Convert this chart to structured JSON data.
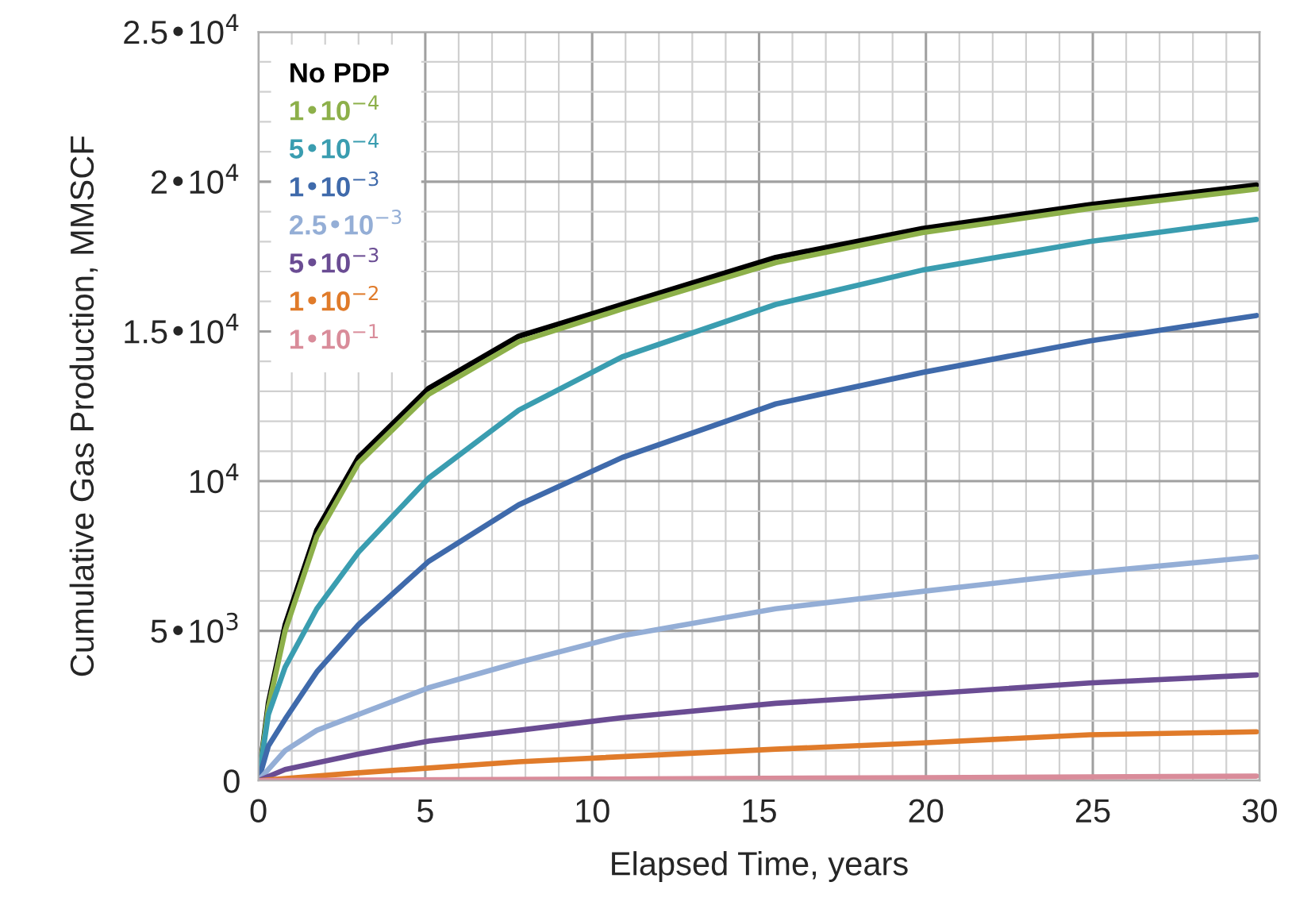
{
  "chart_data": {
    "type": "line",
    "xlabel": "Elapsed Time, years",
    "ylabel": "Cumulative Gas Production, MMSCF",
    "xlim": [
      0,
      30
    ],
    "xticks": [
      0,
      5,
      10,
      15,
      20,
      25,
      30
    ],
    "ylim": [
      0,
      25000
    ],
    "yticks": [
      0,
      {
        "value": 5000,
        "label": "5•10$^{3}$"
      },
      {
        "value": 10000,
        "label": "10$^{4}$"
      },
      {
        "value": 15000,
        "label": "1.5•10$^{4}$"
      },
      {
        "value": 20000,
        "label": "2•10$^{4}$"
      },
      {
        "value": 25000,
        "label": "2.5•10$^{4}$"
      }
    ],
    "grid": true,
    "legend": "top left",
    "marker": "none",
    "line_style": "solid",
    "series": [
      {
        "name": "No PDP",
        "color": "#000000",
        "x": [
          0,
          0.3,
          0.8,
          1.75,
          3,
          5.1,
          7.8,
          10.9,
          15.5,
          19.9,
          24.9,
          29.9
        ],
        "values": [
          0,
          2600,
          5200,
          8370,
          10800,
          13100,
          14840,
          15900,
          17470,
          18440,
          19230,
          19890
        ]
      },
      {
        "name": "1•10$^{−4}$",
        "color": "#8db04a",
        "x": [
          0,
          0.3,
          0.8,
          1.75,
          3,
          5.1,
          7.8,
          10.9,
          15.5,
          19.9,
          24.9,
          29.9
        ],
        "values": [
          0,
          2450,
          5000,
          8150,
          10600,
          12900,
          14650,
          15750,
          17300,
          18300,
          19100,
          19750
        ]
      },
      {
        "name": "5•10$^{−4}$",
        "color": "#3a9db0",
        "x": [
          0,
          0.3,
          0.8,
          1.75,
          3,
          5.1,
          7.8,
          10.9,
          15.5,
          19.9,
          24.9,
          29.9
        ],
        "values": [
          0,
          2210,
          3790,
          5740,
          7630,
          10100,
          12370,
          14150,
          15900,
          17050,
          18000,
          18740
        ]
      },
      {
        "name": "1•10$^{−3}$",
        "color": "#3f6aab",
        "x": [
          0,
          0.3,
          0.8,
          1.75,
          3,
          5.1,
          7.8,
          10.9,
          15.5,
          19.9,
          24.9,
          29.9
        ],
        "values": [
          0,
          1160,
          2050,
          3630,
          5210,
          7320,
          9210,
          10790,
          12580,
          13630,
          14680,
          15530
        ]
      },
      {
        "name": "2.5•10$^{−3}$",
        "color": "#94aed6",
        "x": [
          0,
          0.8,
          1.75,
          3,
          5.1,
          7.8,
          10.9,
          15.5,
          19.9,
          24.9,
          29.9
        ],
        "values": [
          0,
          1000,
          1680,
          2210,
          3100,
          3950,
          4840,
          5740,
          6320,
          6950,
          7470
        ]
      },
      {
        "name": "5•10$^{−3}$",
        "color": "#6a4c93",
        "x": [
          0,
          0.8,
          3,
          5.1,
          7.8,
          10.9,
          15.5,
          19.9,
          24.9,
          29.9
        ],
        "values": [
          0,
          370,
          890,
          1320,
          1680,
          2100,
          2580,
          2890,
          3260,
          3530
        ]
      },
      {
        "name": "1•10$^{−2}$",
        "color": "#e07b2a",
        "x": [
          0,
          3,
          7.8,
          15.5,
          19.9,
          24.9,
          29.9
        ],
        "values": [
          0,
          260,
          630,
          1050,
          1260,
          1530,
          1630
        ]
      },
      {
        "name": "1•10$^{−1}$",
        "color": "#d98c9a",
        "x": [
          0,
          10,
          20,
          29.9
        ],
        "values": [
          0,
          50,
          100,
          150
        ]
      }
    ]
  }
}
